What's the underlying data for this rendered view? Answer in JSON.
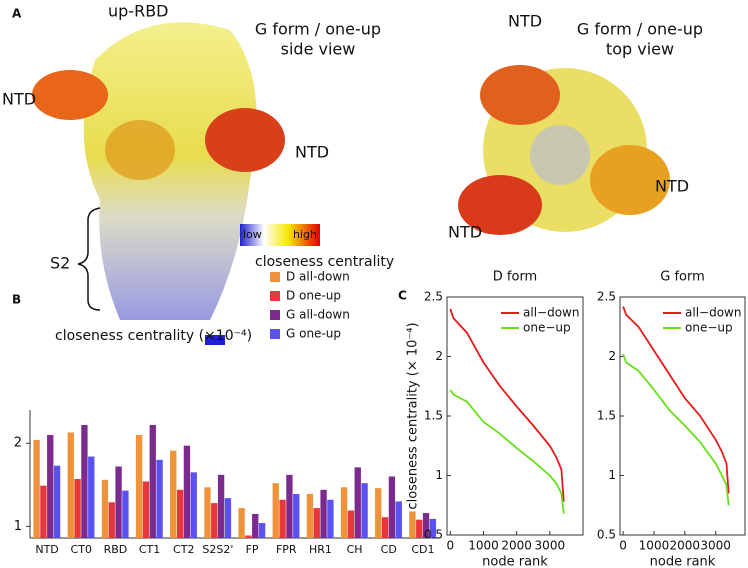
{
  "figure": {
    "panel_a": {
      "label": "A",
      "up_rbd": "up-RBD",
      "side_title": "G form / one-up",
      "side_subtitle": "side view",
      "ntd_left": "NTD",
      "ntd_right": "NTD",
      "s2": "S2",
      "low": "low",
      "high": "high",
      "colorbar_label": "closeness centrality",
      "top_title": "G form / one-up",
      "top_subtitle": "top view",
      "ntd_top": "NTD",
      "ntd_top_right": "NTD",
      "ntd_top_left": "NTD"
    },
    "panel_b": "B",
    "panel_c": "C"
  },
  "chart_data": [
    {
      "type": "bar",
      "title": "closeness centrality (×10⁻⁴)",
      "categories": [
        "NTD",
        "CT0",
        "RBD",
        "CT1",
        "CT2",
        "S2S2'",
        "FP",
        "FPR",
        "HR1",
        "CH",
        "CD",
        "CD1"
      ],
      "series": [
        {
          "name": "D all-down",
          "color": "#f0923a",
          "values": [
            2.04,
            2.13,
            1.56,
            2.1,
            1.91,
            1.47,
            1.22,
            1.52,
            1.39,
            1.47,
            1.46,
            1.18
          ]
        },
        {
          "name": "D one-up",
          "color": "#e8373a",
          "values": [
            1.49,
            1.57,
            1.29,
            1.54,
            1.44,
            1.28,
            0.89,
            1.32,
            1.22,
            1.19,
            1.11,
            1.08
          ]
        },
        {
          "name": "G all-down",
          "color": "#7b2a8e",
          "values": [
            2.1,
            2.22,
            1.72,
            2.22,
            1.97,
            1.62,
            1.15,
            1.62,
            1.44,
            1.71,
            1.6,
            1.16
          ]
        },
        {
          "name": "G one-up",
          "color": "#5a52f0",
          "values": [
            1.73,
            1.84,
            1.43,
            1.8,
            1.65,
            1.34,
            1.04,
            1.39,
            1.32,
            1.52,
            1.3,
            1.09
          ]
        }
      ],
      "ylim": [
        0.86,
        2.4
      ],
      "yticks": [
        1,
        2
      ]
    },
    {
      "type": "line",
      "title": "D form",
      "xlabel": "node rank",
      "ylabel": "closeness centrality (× 10⁻⁴)",
      "x": [
        0,
        100,
        500,
        1000,
        1500,
        2000,
        2500,
        3000,
        3200,
        3350,
        3420
      ],
      "series": [
        {
          "name": "all−down",
          "color": "#e51a1a",
          "values": [
            2.4,
            2.32,
            2.2,
            1.95,
            1.75,
            1.58,
            1.42,
            1.25,
            1.15,
            1.05,
            0.78
          ]
        },
        {
          "name": "one−up",
          "color": "#66e01a",
          "values": [
            1.72,
            1.68,
            1.62,
            1.45,
            1.35,
            1.23,
            1.12,
            1.0,
            0.93,
            0.85,
            0.68
          ]
        }
      ],
      "xlim": [
        -100,
        4000
      ],
      "ylim": [
        0.5,
        2.5
      ],
      "xticks": [
        0,
        1000,
        2000,
        3000
      ],
      "yticks": [
        0.5,
        1,
        1.5,
        2,
        2.5
      ]
    },
    {
      "type": "line",
      "title": "G form",
      "xlabel": "node rank",
      "x": [
        0,
        100,
        500,
        1000,
        1500,
        2000,
        2500,
        3000,
        3200,
        3350,
        3420
      ],
      "series": [
        {
          "name": "all−down",
          "color": "#e51a1a",
          "values": [
            2.42,
            2.35,
            2.25,
            2.05,
            1.85,
            1.65,
            1.5,
            1.3,
            1.2,
            1.1,
            0.85
          ]
        },
        {
          "name": "one−up",
          "color": "#66e01a",
          "values": [
            2.02,
            1.95,
            1.88,
            1.72,
            1.55,
            1.42,
            1.28,
            1.1,
            1.0,
            0.92,
            0.75
          ]
        }
      ],
      "xlim": [
        -100,
        3950
      ],
      "ylim": [
        0.5,
        2.5
      ],
      "xticks": [
        0,
        1000,
        2000,
        3000
      ],
      "yticks": [
        0.5,
        1,
        1.5,
        2,
        2.5
      ]
    }
  ]
}
